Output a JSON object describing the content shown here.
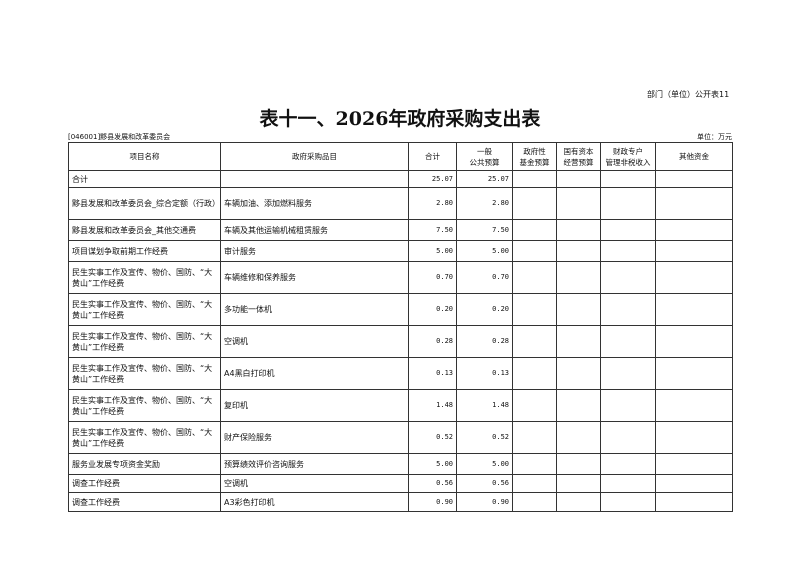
{
  "header": {
    "code": "部门（单位）公开表11",
    "title": "表十一、2026年政府采购支出表",
    "unit_name": "[046001]黟县发展和改革委员会",
    "unit": "单位：万元"
  },
  "columns": [
    "项目名称",
    "政府采购品目",
    "合计",
    "一般\n公共预算",
    "政府性\n基金预算",
    "国有资本\n经营预算",
    "财政专户\n管理非税收入",
    "其他资金"
  ],
  "rows": [
    {
      "name": "合计",
      "item": "",
      "total": "25.07",
      "general": "25.07"
    },
    {
      "name": "黟县发展和改革委员会_综合定额（行政）",
      "item": "车辆加油、添加燃料服务",
      "total": "2.80",
      "general": "2.80"
    },
    {
      "name": "黟县发展和改革委员会_其他交通费",
      "item": "车辆及其他运输机械租赁服务",
      "total": "7.50",
      "general": "7.50"
    },
    {
      "name": "项目谋划争取前期工作经费",
      "item": "审计服务",
      "total": "5.00",
      "general": "5.00"
    },
    {
      "name": "民生实事工作及宣传、物价、国防、“大黄山”工作经费",
      "item": "车辆维修和保养服务",
      "total": "0.70",
      "general": "0.70"
    },
    {
      "name": "民生实事工作及宣传、物价、国防、“大黄山”工作经费",
      "item": "多功能一体机",
      "total": "0.20",
      "general": "0.20"
    },
    {
      "name": "民生实事工作及宣传、物价、国防、“大黄山”工作经费",
      "item": "空调机",
      "total": "0.28",
      "general": "0.28"
    },
    {
      "name": "民生实事工作及宣传、物价、国防、“大黄山”工作经费",
      "item": "A4黑白打印机",
      "total": "0.13",
      "general": "0.13"
    },
    {
      "name": "民生实事工作及宣传、物价、国防、“大黄山”工作经费",
      "item": "复印机",
      "total": "1.48",
      "general": "1.48"
    },
    {
      "name": "民生实事工作及宣传、物价、国防、“大黄山”工作经费",
      "item": "财产保险服务",
      "total": "0.52",
      "general": "0.52"
    },
    {
      "name": "服务业发展专项资金奖励",
      "item": "预算绩效评价咨询服务",
      "total": "5.00",
      "general": "5.00"
    },
    {
      "name": "调查工作经费",
      "item": "空调机",
      "total": "0.56",
      "general": "0.56"
    },
    {
      "name": "调查工作经费",
      "item": "A3彩色打印机",
      "total": "0.90",
      "general": "0.90"
    }
  ]
}
